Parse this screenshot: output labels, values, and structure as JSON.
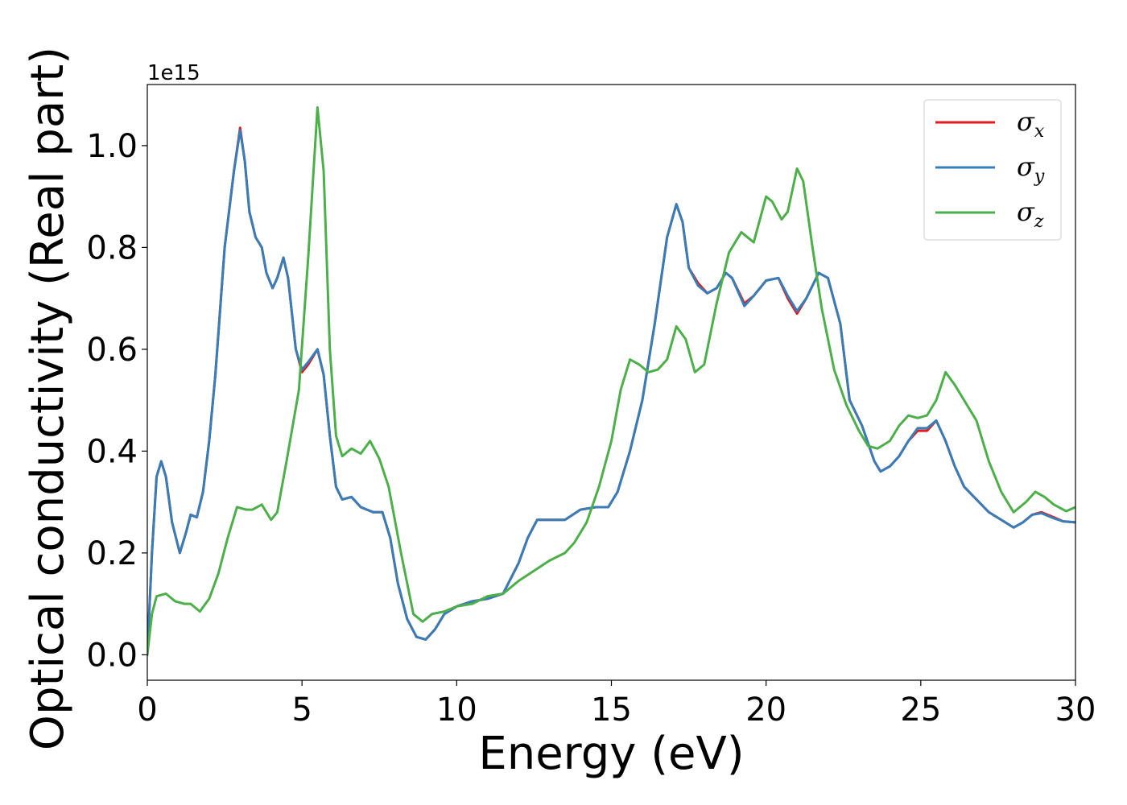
{
  "chart_data": {
    "type": "line",
    "xlabel": "Energy (eV)",
    "ylabel": "Optical conductivity (Real part)",
    "y_offset_label": "1e15",
    "xlim": [
      0,
      30
    ],
    "ylim": [
      -0.05,
      1.12
    ],
    "x_ticks": [
      0,
      5,
      10,
      15,
      20,
      25,
      30
    ],
    "x_tick_labels": [
      "0",
      "5",
      "10",
      "15",
      "20",
      "25",
      "30"
    ],
    "y_ticks": [
      0.0,
      0.2,
      0.4,
      0.6,
      0.8,
      1.0
    ],
    "y_tick_labels": [
      "0.0",
      "0.2",
      "0.4",
      "0.6",
      "0.8",
      "1.0"
    ],
    "grid": false,
    "legend_position": "top-right",
    "series": [
      {
        "name": "σx",
        "symbol": "σ",
        "sub": "x",
        "color": "#e41a1c",
        "points": [
          [
            0,
            0
          ],
          [
            0.15,
            0.2
          ],
          [
            0.3,
            0.35
          ],
          [
            0.45,
            0.38
          ],
          [
            0.6,
            0.35
          ],
          [
            0.8,
            0.26
          ],
          [
            1.05,
            0.2
          ],
          [
            1.25,
            0.24
          ],
          [
            1.4,
            0.275
          ],
          [
            1.6,
            0.27
          ],
          [
            1.8,
            0.32
          ],
          [
            2.0,
            0.42
          ],
          [
            2.2,
            0.55
          ],
          [
            2.5,
            0.8
          ],
          [
            2.8,
            0.95
          ],
          [
            3.0,
            1.035
          ],
          [
            3.15,
            0.97
          ],
          [
            3.3,
            0.87
          ],
          [
            3.5,
            0.82
          ],
          [
            3.7,
            0.8
          ],
          [
            3.85,
            0.75
          ],
          [
            4.05,
            0.72
          ],
          [
            4.2,
            0.74
          ],
          [
            4.4,
            0.78
          ],
          [
            4.55,
            0.74
          ],
          [
            4.8,
            0.6
          ],
          [
            5.0,
            0.555
          ],
          [
            5.2,
            0.57
          ],
          [
            5.5,
            0.6
          ],
          [
            5.7,
            0.55
          ],
          [
            5.9,
            0.43
          ],
          [
            6.1,
            0.33
          ],
          [
            6.3,
            0.305
          ],
          [
            6.6,
            0.31
          ],
          [
            6.9,
            0.29
          ],
          [
            7.3,
            0.28
          ],
          [
            7.6,
            0.28
          ],
          [
            7.85,
            0.23
          ],
          [
            8.1,
            0.14
          ],
          [
            8.4,
            0.07
          ],
          [
            8.7,
            0.035
          ],
          [
            9.0,
            0.03
          ],
          [
            9.3,
            0.05
          ],
          [
            9.6,
            0.08
          ],
          [
            10.0,
            0.095
          ],
          [
            10.5,
            0.105
          ],
          [
            11.0,
            0.11
          ],
          [
            11.5,
            0.12
          ],
          [
            12.0,
            0.18
          ],
          [
            12.3,
            0.23
          ],
          [
            12.6,
            0.265
          ],
          [
            13.0,
            0.265
          ],
          [
            13.5,
            0.265
          ],
          [
            14.0,
            0.285
          ],
          [
            14.5,
            0.29
          ],
          [
            14.9,
            0.29
          ],
          [
            15.2,
            0.32
          ],
          [
            15.6,
            0.4
          ],
          [
            16.0,
            0.5
          ],
          [
            16.4,
            0.65
          ],
          [
            16.8,
            0.82
          ],
          [
            17.1,
            0.885
          ],
          [
            17.3,
            0.85
          ],
          [
            17.5,
            0.76
          ],
          [
            17.8,
            0.73
          ],
          [
            18.1,
            0.71
          ],
          [
            18.4,
            0.72
          ],
          [
            18.7,
            0.75
          ],
          [
            18.9,
            0.74
          ],
          [
            19.3,
            0.69
          ],
          [
            19.6,
            0.705
          ],
          [
            20.0,
            0.735
          ],
          [
            20.4,
            0.74
          ],
          [
            20.7,
            0.7
          ],
          [
            21.0,
            0.67
          ],
          [
            21.3,
            0.7
          ],
          [
            21.7,
            0.75
          ],
          [
            22.0,
            0.74
          ],
          [
            22.4,
            0.65
          ],
          [
            22.7,
            0.5
          ],
          [
            23.1,
            0.45
          ],
          [
            23.5,
            0.38
          ],
          [
            23.7,
            0.36
          ],
          [
            24.0,
            0.37
          ],
          [
            24.3,
            0.39
          ],
          [
            24.6,
            0.42
          ],
          [
            24.9,
            0.44
          ],
          [
            25.2,
            0.44
          ],
          [
            25.5,
            0.46
          ],
          [
            25.8,
            0.42
          ],
          [
            26.1,
            0.37
          ],
          [
            26.4,
            0.33
          ],
          [
            26.8,
            0.305
          ],
          [
            27.2,
            0.28
          ],
          [
            27.6,
            0.265
          ],
          [
            28.0,
            0.25
          ],
          [
            28.3,
            0.26
          ],
          [
            28.6,
            0.275
          ],
          [
            28.9,
            0.28
          ],
          [
            29.3,
            0.27
          ],
          [
            29.6,
            0.262
          ],
          [
            30,
            0.26
          ]
        ]
      },
      {
        "name": "σy",
        "symbol": "σ",
        "sub": "y",
        "color": "#377eb8",
        "points": [
          [
            0,
            0
          ],
          [
            0.15,
            0.2
          ],
          [
            0.3,
            0.35
          ],
          [
            0.45,
            0.38
          ],
          [
            0.6,
            0.35
          ],
          [
            0.8,
            0.26
          ],
          [
            1.05,
            0.2
          ],
          [
            1.25,
            0.24
          ],
          [
            1.4,
            0.275
          ],
          [
            1.6,
            0.27
          ],
          [
            1.8,
            0.32
          ],
          [
            2.0,
            0.42
          ],
          [
            2.2,
            0.55
          ],
          [
            2.5,
            0.8
          ],
          [
            2.8,
            0.95
          ],
          [
            3.0,
            1.03
          ],
          [
            3.15,
            0.97
          ],
          [
            3.3,
            0.87
          ],
          [
            3.5,
            0.82
          ],
          [
            3.7,
            0.8
          ],
          [
            3.85,
            0.75
          ],
          [
            4.05,
            0.72
          ],
          [
            4.2,
            0.74
          ],
          [
            4.4,
            0.78
          ],
          [
            4.55,
            0.74
          ],
          [
            4.8,
            0.6
          ],
          [
            5.0,
            0.56
          ],
          [
            5.2,
            0.575
          ],
          [
            5.5,
            0.6
          ],
          [
            5.7,
            0.55
          ],
          [
            5.9,
            0.43
          ],
          [
            6.1,
            0.33
          ],
          [
            6.3,
            0.305
          ],
          [
            6.6,
            0.31
          ],
          [
            6.9,
            0.29
          ],
          [
            7.3,
            0.28
          ],
          [
            7.6,
            0.28
          ],
          [
            7.85,
            0.23
          ],
          [
            8.1,
            0.14
          ],
          [
            8.4,
            0.07
          ],
          [
            8.7,
            0.035
          ],
          [
            9.0,
            0.03
          ],
          [
            9.3,
            0.05
          ],
          [
            9.6,
            0.08
          ],
          [
            10.0,
            0.095
          ],
          [
            10.5,
            0.105
          ],
          [
            11.0,
            0.11
          ],
          [
            11.5,
            0.12
          ],
          [
            12.0,
            0.18
          ],
          [
            12.3,
            0.23
          ],
          [
            12.6,
            0.265
          ],
          [
            13.0,
            0.265
          ],
          [
            13.5,
            0.265
          ],
          [
            14.0,
            0.285
          ],
          [
            14.5,
            0.29
          ],
          [
            14.9,
            0.29
          ],
          [
            15.2,
            0.32
          ],
          [
            15.6,
            0.4
          ],
          [
            16.0,
            0.5
          ],
          [
            16.4,
            0.65
          ],
          [
            16.8,
            0.82
          ],
          [
            17.1,
            0.885
          ],
          [
            17.3,
            0.85
          ],
          [
            17.5,
            0.76
          ],
          [
            17.8,
            0.725
          ],
          [
            18.1,
            0.71
          ],
          [
            18.4,
            0.72
          ],
          [
            18.7,
            0.75
          ],
          [
            18.9,
            0.74
          ],
          [
            19.3,
            0.685
          ],
          [
            19.6,
            0.705
          ],
          [
            20.0,
            0.735
          ],
          [
            20.4,
            0.74
          ],
          [
            20.7,
            0.705
          ],
          [
            21.0,
            0.675
          ],
          [
            21.3,
            0.7
          ],
          [
            21.7,
            0.75
          ],
          [
            22.0,
            0.74
          ],
          [
            22.4,
            0.65
          ],
          [
            22.7,
            0.5
          ],
          [
            23.1,
            0.45
          ],
          [
            23.5,
            0.38
          ],
          [
            23.7,
            0.36
          ],
          [
            24.0,
            0.37
          ],
          [
            24.3,
            0.39
          ],
          [
            24.6,
            0.42
          ],
          [
            24.9,
            0.445
          ],
          [
            25.2,
            0.445
          ],
          [
            25.5,
            0.46
          ],
          [
            25.8,
            0.42
          ],
          [
            26.1,
            0.37
          ],
          [
            26.4,
            0.33
          ],
          [
            26.8,
            0.305
          ],
          [
            27.2,
            0.28
          ],
          [
            27.6,
            0.265
          ],
          [
            28.0,
            0.25
          ],
          [
            28.3,
            0.26
          ],
          [
            28.6,
            0.275
          ],
          [
            28.9,
            0.278
          ],
          [
            29.3,
            0.268
          ],
          [
            29.6,
            0.262
          ],
          [
            30,
            0.26
          ]
        ]
      },
      {
        "name": "σz",
        "symbol": "σ",
        "sub": "z",
        "color": "#4daf4a",
        "points": [
          [
            0,
            0
          ],
          [
            0.15,
            0.08
          ],
          [
            0.3,
            0.115
          ],
          [
            0.6,
            0.12
          ],
          [
            0.9,
            0.105
          ],
          [
            1.2,
            0.1
          ],
          [
            1.4,
            0.1
          ],
          [
            1.7,
            0.085
          ],
          [
            2.0,
            0.11
          ],
          [
            2.3,
            0.16
          ],
          [
            2.6,
            0.23
          ],
          [
            2.9,
            0.29
          ],
          [
            3.2,
            0.285
          ],
          [
            3.4,
            0.285
          ],
          [
            3.7,
            0.295
          ],
          [
            4.0,
            0.265
          ],
          [
            4.2,
            0.28
          ],
          [
            4.5,
            0.38
          ],
          [
            4.9,
            0.52
          ],
          [
            5.2,
            0.78
          ],
          [
            5.5,
            1.075
          ],
          [
            5.7,
            0.95
          ],
          [
            5.9,
            0.6
          ],
          [
            6.1,
            0.43
          ],
          [
            6.3,
            0.39
          ],
          [
            6.6,
            0.405
          ],
          [
            6.9,
            0.395
          ],
          [
            7.2,
            0.42
          ],
          [
            7.5,
            0.385
          ],
          [
            7.8,
            0.33
          ],
          [
            8.2,
            0.2
          ],
          [
            8.6,
            0.08
          ],
          [
            8.9,
            0.065
          ],
          [
            9.2,
            0.08
          ],
          [
            9.6,
            0.085
          ],
          [
            10.0,
            0.095
          ],
          [
            10.5,
            0.1
          ],
          [
            11.0,
            0.115
          ],
          [
            11.5,
            0.12
          ],
          [
            12.0,
            0.145
          ],
          [
            12.5,
            0.165
          ],
          [
            13.0,
            0.185
          ],
          [
            13.5,
            0.2
          ],
          [
            13.8,
            0.22
          ],
          [
            14.2,
            0.26
          ],
          [
            14.6,
            0.33
          ],
          [
            15.0,
            0.42
          ],
          [
            15.3,
            0.52
          ],
          [
            15.6,
            0.58
          ],
          [
            15.9,
            0.57
          ],
          [
            16.2,
            0.555
          ],
          [
            16.5,
            0.56
          ],
          [
            16.8,
            0.58
          ],
          [
            17.1,
            0.645
          ],
          [
            17.4,
            0.62
          ],
          [
            17.7,
            0.555
          ],
          [
            18.0,
            0.57
          ],
          [
            18.4,
            0.69
          ],
          [
            18.8,
            0.79
          ],
          [
            19.2,
            0.83
          ],
          [
            19.6,
            0.81
          ],
          [
            20.0,
            0.9
          ],
          [
            20.2,
            0.89
          ],
          [
            20.5,
            0.855
          ],
          [
            20.7,
            0.87
          ],
          [
            21.0,
            0.955
          ],
          [
            21.2,
            0.93
          ],
          [
            21.5,
            0.8
          ],
          [
            21.8,
            0.68
          ],
          [
            22.2,
            0.56
          ],
          [
            22.6,
            0.49
          ],
          [
            23.0,
            0.44
          ],
          [
            23.3,
            0.41
          ],
          [
            23.6,
            0.405
          ],
          [
            24.0,
            0.42
          ],
          [
            24.3,
            0.45
          ],
          [
            24.6,
            0.47
          ],
          [
            24.9,
            0.465
          ],
          [
            25.2,
            0.47
          ],
          [
            25.5,
            0.5
          ],
          [
            25.8,
            0.555
          ],
          [
            26.1,
            0.53
          ],
          [
            26.4,
            0.5
          ],
          [
            26.8,
            0.46
          ],
          [
            27.2,
            0.38
          ],
          [
            27.6,
            0.32
          ],
          [
            28.0,
            0.28
          ],
          [
            28.4,
            0.3
          ],
          [
            28.7,
            0.32
          ],
          [
            29.0,
            0.31
          ],
          [
            29.3,
            0.295
          ],
          [
            29.7,
            0.282
          ],
          [
            30,
            0.29
          ]
        ]
      }
    ]
  }
}
